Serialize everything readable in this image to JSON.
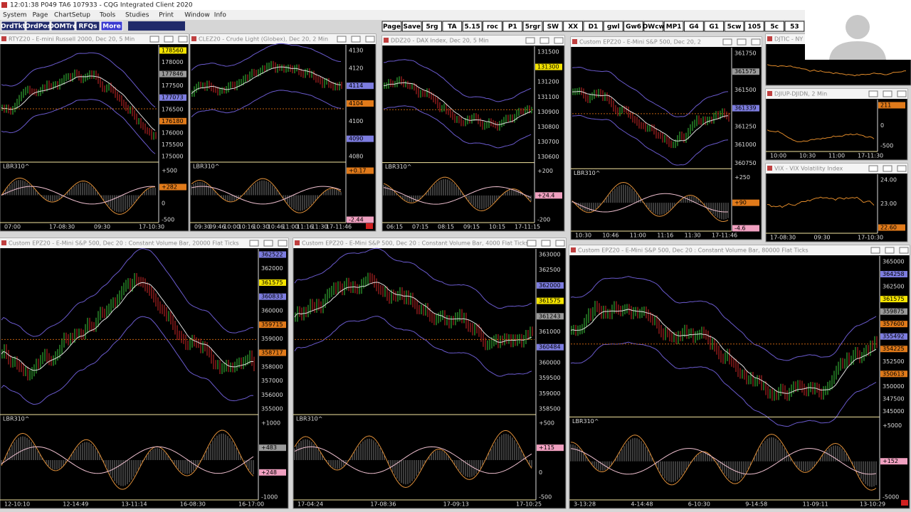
{
  "titlebar": "12:01:38  P049 TA6  107933 - CQG Integrated Client 2020",
  "menu": [
    "System",
    "Page",
    "ChartSetup",
    "Tools",
    "Studies",
    "Print",
    "Window",
    "Info"
  ],
  "left_buttons": [
    "OrdTkt",
    "OrdPos",
    "DOMTrd",
    "RFQs",
    "More"
  ],
  "toolbar": [
    "Page",
    "Save",
    "5rg",
    "TA",
    "5.15",
    "roc",
    "P1",
    "5rgr",
    "SW",
    "XX",
    "D1",
    "gwl",
    "Gw6",
    "DWcw",
    "MP1",
    "G4",
    "G1",
    "5cw",
    "105",
    "5c",
    "53"
  ],
  "windows": [
    {
      "title": "RTYZ20 - E-mini Russell 2000, Dec 20, 5 Min",
      "prices": [
        {
          "text": "178560",
          "color": "#f5e400"
        },
        {
          "text": "178000"
        },
        {
          "text": "177846",
          "color": "#9a9a9a"
        },
        {
          "text": "177500"
        },
        {
          "text": "177073",
          "color": "#7d7de0"
        },
        {
          "text": "176500"
        },
        {
          "text": "176180",
          "color": "#e07a1a"
        },
        {
          "text": "176000"
        },
        {
          "text": "175500"
        },
        {
          "text": "175000"
        }
      ],
      "indicator": {
        "name": "LBR310^",
        "labels": [
          {
            "text": "+500"
          },
          {
            "text": "+282",
            "color": "#e07a1a"
          },
          {
            "text": "0"
          },
          {
            "text": "-500"
          }
        ]
      },
      "times": [
        "07:00",
        "17-08:30",
        "09:30",
        "17-10:30"
      ]
    },
    {
      "title": "CLEZ20 - Crude Light (Globex), Dec 20, 2 Min",
      "prices": [
        {
          "text": "4130"
        },
        {
          "text": "4120"
        },
        {
          "text": "4114",
          "color": "#7d7de0"
        },
        {
          "text": "4104",
          "color": "#e07a1a"
        },
        {
          "text": "4100"
        },
        {
          "text": "4090",
          "color": "#7d7de0"
        },
        {
          "text": "4080"
        }
      ],
      "indicator": {
        "name": "LBR310^",
        "labels": [
          {
            "text": "+0.17",
            "color": "#e07a1a"
          },
          {
            "text": "-2.44",
            "color": "#f0a0c0"
          }
        ]
      },
      "times": [
        "09:30",
        "09:46",
        "10:00",
        "10:16",
        "10:30",
        "10:46",
        "11:00",
        "11:16",
        "11:30",
        "17-11:46"
      ]
    },
    {
      "title": "DDZ20 - DAX Index, Dec 20, 5 Min",
      "prices": [
        {
          "text": "131500"
        },
        {
          "text": "131300",
          "color": "#f5e400"
        },
        {
          "text": "131200"
        },
        {
          "text": "131100"
        },
        {
          "text": "130900"
        },
        {
          "text": "130800"
        },
        {
          "text": "130700"
        },
        {
          "text": "130600"
        }
      ],
      "indicator": {
        "name": "LBR310^",
        "labels": [
          {
            "text": "+200"
          },
          {
            "text": "+24.4",
            "color": "#f0a0c0"
          },
          {
            "text": "-200"
          }
        ]
      },
      "times": [
        "06:15",
        "07:15",
        "08:15",
        "09:15",
        "10:15",
        "17-11:15"
      ]
    },
    {
      "title": "Custom EPZ20 - E-Mini S&P 500, Dec 20, 2",
      "prices": [
        {
          "text": "361750"
        },
        {
          "text": "361575",
          "color": "#9a9a9a"
        },
        {
          "text": "361500"
        },
        {
          "text": "361339",
          "color": "#7d7de0"
        },
        {
          "text": "361250"
        },
        {
          "text": "361000"
        },
        {
          "text": "360750"
        }
      ],
      "indicator": {
        "name": "LBR310^",
        "labels": [
          {
            "text": "+250"
          },
          {
            "text": "+90",
            "color": "#e07a1a"
          },
          {
            "text": "-4.6",
            "color": "#f0a0c0"
          }
        ]
      },
      "times": [
        "10:30",
        "10:46",
        "11:00",
        "11:16",
        "11:30",
        "17-11:46"
      ]
    },
    {
      "title": "DJIUP-DJIDN, 2 Min",
      "prices": [
        {
          "text": "211",
          "color": "#e07a1a"
        },
        {
          "text": "0"
        },
        {
          "text": "-500"
        }
      ],
      "times": [
        "10:00",
        "10:30",
        "11:00",
        "17-11:30"
      ]
    },
    {
      "title": "VIX - VIX Volatility Index",
      "prices": [
        {
          "text": "24.00"
        },
        {
          "text": "23.00"
        },
        {
          "text": "22.60",
          "color": "#e07a1a"
        }
      ],
      "times": [
        "17-08:30",
        "09:30",
        "17-10:30"
      ]
    },
    {
      "title": "Custom EPZ20 - E-Mini S&P 500, Dec 20 : Constant Volume Bar, 20000 Flat Ticks",
      "prices": [
        {
          "text": "362522",
          "color": "#7d7de0"
        },
        {
          "text": "362000"
        },
        {
          "text": "361575",
          "color": "#f5e400"
        },
        {
          "text": "360833",
          "color": "#7d7de0"
        },
        {
          "text": "360000"
        },
        {
          "text": "359715",
          "color": "#e07a1a"
        },
        {
          "text": "359000"
        },
        {
          "text": "358717",
          "color": "#e07a1a"
        },
        {
          "text": "358000"
        },
        {
          "text": "357000"
        },
        {
          "text": "356000"
        },
        {
          "text": "355000"
        }
      ],
      "indicator": {
        "name": "LBR310^",
        "labels": [
          {
            "text": "+1000"
          },
          {
            "text": "+483",
            "color": "#9a9a9a"
          },
          {
            "text": "+248",
            "color": "#f0a0c0"
          },
          {
            "text": "-1000"
          }
        ]
      },
      "times": [
        "12-10:10",
        "12-14:49",
        "13-11:14",
        "16-08:30",
        "16-17:00"
      ]
    },
    {
      "title": "Custom EPZ20 - E-Mini S&P 500, Dec 20 : Constant Volume Bar, 4000 Flat Ticks",
      "prices": [
        {
          "text": "363000"
        },
        {
          "text": "362500"
        },
        {
          "text": "362000",
          "color": "#7d7de0"
        },
        {
          "text": "361575",
          "color": "#f5e400"
        },
        {
          "text": "361243",
          "color": "#9a9a9a"
        },
        {
          "text": "361000"
        },
        {
          "text": "360484",
          "color": "#7d7de0"
        },
        {
          "text": "360000"
        },
        {
          "text": "359500"
        },
        {
          "text": "359000"
        },
        {
          "text": "358500"
        }
      ],
      "indicator": {
        "name": "LBR310^",
        "labels": [
          {
            "text": "+500"
          },
          {
            "text": "+115",
            "color": "#f0a0c0"
          },
          {
            "text": "0"
          },
          {
            "text": "-500"
          }
        ]
      },
      "times": [
        "17-04:24",
        "17-08:36",
        "17-09:13",
        "17-10:25"
      ]
    },
    {
      "title": "Custom EPZ20 - E-Mini S&P 500, Dec 20 : Constant Volume Bar, 80000 Flat Ticks",
      "prices": [
        {
          "text": "365000"
        },
        {
          "text": "364258",
          "color": "#7d7de0"
        },
        {
          "text": "362500"
        },
        {
          "text": "361575",
          "color": "#f5e400"
        },
        {
          "text": "359875",
          "color": "#9a9a9a"
        },
        {
          "text": "357600",
          "color": "#e07a1a"
        },
        {
          "text": "355492",
          "color": "#7d7de0"
        },
        {
          "text": "354225",
          "color": "#e07a1a"
        },
        {
          "text": "352500"
        },
        {
          "text": "350613",
          "color": "#e07a1a"
        },
        {
          "text": "350000"
        },
        {
          "text": "347500"
        },
        {
          "text": "345000"
        }
      ],
      "indicator": {
        "name": "LBR310^",
        "labels": [
          {
            "text": "+5000"
          },
          {
            "text": "+152",
            "color": "#f0a0c0"
          },
          {
            "text": "-5000"
          }
        ]
      },
      "times": [
        "3-13:28",
        "4-14:48",
        "6-10:30",
        "9-14:58",
        "11-09:11",
        "13-10:29"
      ]
    },
    {
      "title": "DJTIC - NY"
    }
  ]
}
